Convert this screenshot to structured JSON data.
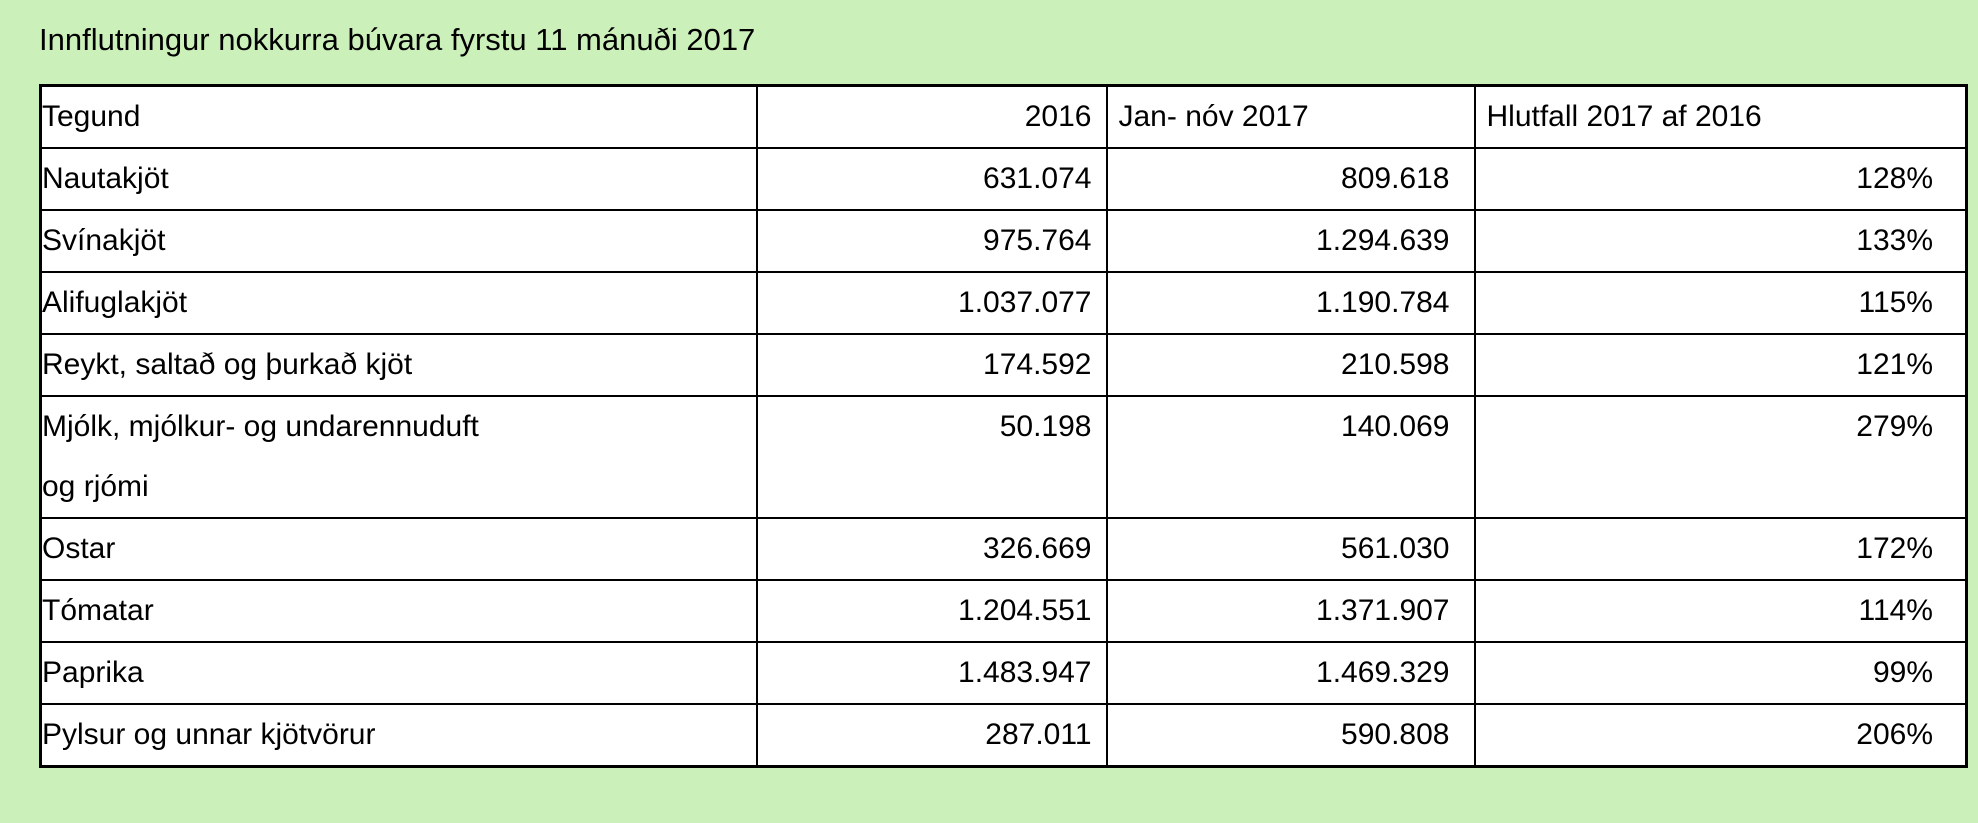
{
  "title": "Innflutningur nokkurra búvara fyrstu 11 mánuði 2017",
  "colors": {
    "page_background": "#ccf0ba",
    "table_background": "#ffffff",
    "border": "#000000",
    "text": "#000000"
  },
  "table": {
    "columns": [
      {
        "label": "Tegund"
      },
      {
        "label": "2016"
      },
      {
        "label": "Jan- nóv 2017"
      },
      {
        "label": "Hlutfall 2017 af 2016"
      }
    ],
    "rows": [
      [
        "Nautakjöt",
        "631.074",
        "809.618",
        "128%"
      ],
      [
        "Svínakjöt",
        "975.764",
        "1.294.639",
        "133%"
      ],
      [
        "Alifuglakjöt",
        "1.037.077",
        "1.190.784",
        "115%"
      ],
      [
        "Reykt, saltað og þurkað kjöt",
        "174.592",
        "210.598",
        "121%"
      ],
      [
        "Mjólk, mjólkur- og undarennuduft\nog rjómi",
        "50.198",
        "140.069",
        "279%"
      ],
      [
        "Ostar",
        "326.669",
        "561.030",
        "172%"
      ],
      [
        "Tómatar",
        "1.204.551",
        "1.371.907",
        "114%"
      ],
      [
        "Paprika",
        "1.483.947",
        "1.469.329",
        "99%"
      ],
      [
        "Pylsur og unnar kjötvörur",
        "287.011",
        "590.808",
        "206%"
      ]
    ]
  },
  "chart_data": {
    "type": "table",
    "title": "Innflutningur nokkurra búvara fyrstu 11 mánuði 2017",
    "columns": [
      "Tegund",
      "2016",
      "Jan- nóv 2017",
      "Hlutfall 2017 af 2016"
    ],
    "rows": [
      [
        "Nautakjöt",
        631074,
        809618,
        "128%"
      ],
      [
        "Svínakjöt",
        975764,
        1294639,
        "133%"
      ],
      [
        "Alifuglakjöt",
        1037077,
        1190784,
        "115%"
      ],
      [
        "Reykt, saltað og þurkað kjöt",
        174592,
        210598,
        "121%"
      ],
      [
        "Mjólk, mjólkur- og undarennuduft og rjómi",
        50198,
        140069,
        "279%"
      ],
      [
        "Ostar",
        326669,
        561030,
        "172%"
      ],
      [
        "Tómatar",
        1204551,
        1371907,
        "114%"
      ],
      [
        "Paprika",
        1483947,
        1469329,
        "99%"
      ],
      [
        "Pylsur og unnar kjötvörur",
        287011,
        590808,
        "206%"
      ]
    ]
  }
}
